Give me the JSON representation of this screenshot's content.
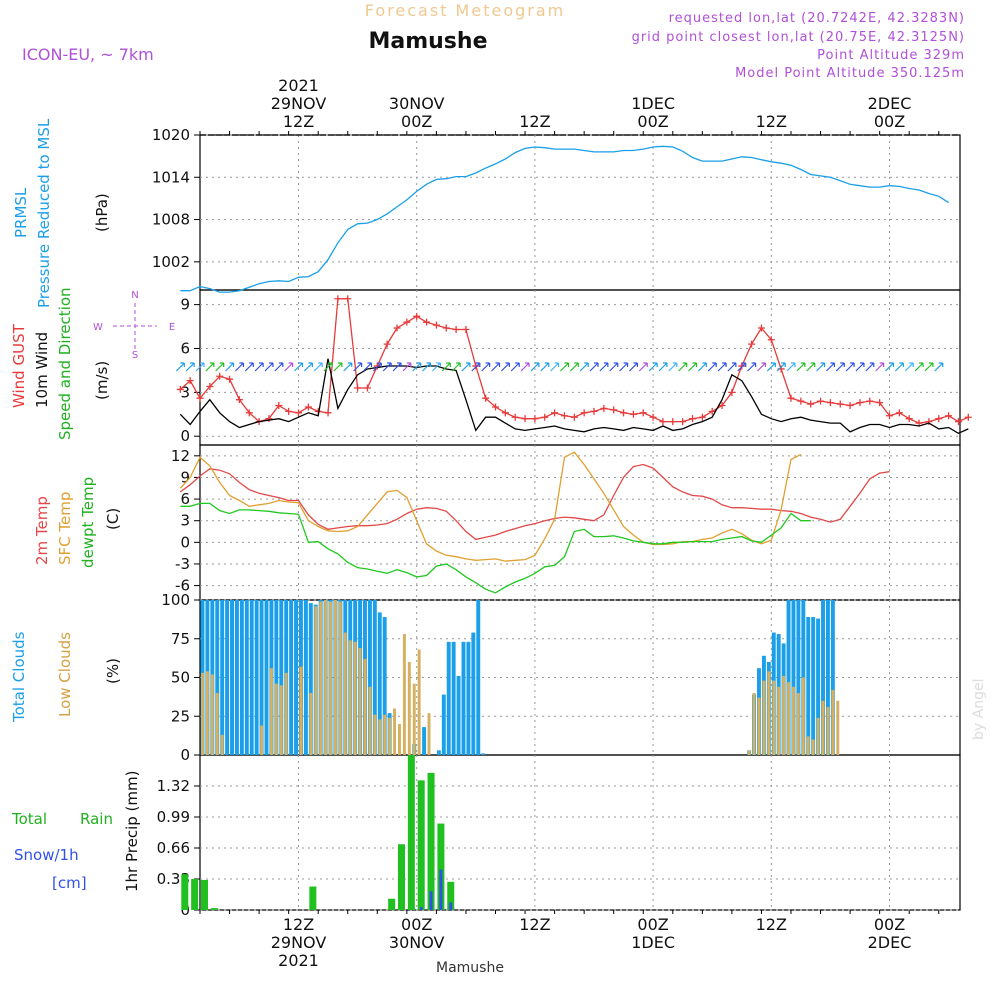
{
  "header": {
    "forecast_label": "Forecast Meteogram",
    "station": "Mamushe",
    "model": "ICON-EU, ~ 7km",
    "requested": "requested lon,lat (20.7242E, 42.3283N)",
    "grid_point": "grid point closest lon,lat (20.75E, 42.3125N)",
    "point_altitude": "Point Altitude 329m",
    "model_altitude": "Model Point Altitude 350.125m",
    "footer_station": "Mamushe",
    "watermark": "by Angel"
  },
  "time_axis": {
    "top_labels": [
      {
        "t": 12,
        "lines": [
          "2021",
          "29NOV",
          "12Z"
        ]
      },
      {
        "t": 24,
        "lines": [
          "30NOV",
          "00Z"
        ]
      },
      {
        "t": 36,
        "lines": [
          "12Z"
        ]
      },
      {
        "t": 48,
        "lines": [
          "1DEC",
          "00Z"
        ]
      },
      {
        "t": 60,
        "lines": [
          "12Z"
        ]
      },
      {
        "t": 72,
        "lines": [
          "2DEC",
          "00Z"
        ]
      }
    ],
    "bottom_labels": [
      {
        "t": 12,
        "lines": [
          "12Z",
          "29NOV",
          "2021"
        ]
      },
      {
        "t": 24,
        "lines": [
          "00Z",
          "30NOV"
        ]
      },
      {
        "t": 36,
        "lines": [
          "12Z"
        ]
      },
      {
        "t": 48,
        "lines": [
          "00Z",
          "1DEC"
        ]
      },
      {
        "t": 60,
        "lines": [
          "12Z"
        ]
      },
      {
        "t": 72,
        "lines": [
          "00Z",
          "2DEC"
        ]
      }
    ]
  },
  "panel_labels": {
    "pressure": {
      "l1": "PRMSL",
      "l2": "Pressure Reduced to MSL",
      "unit": "(hPa)"
    },
    "wind": {
      "l1": "Wind GUST",
      "l2": "10m Wind",
      "l3": "Speed and Direction",
      "unit": "(m/s)",
      "compass_n": "N",
      "compass_s": "S",
      "compass_w": "W",
      "compass_e": "E"
    },
    "temp": {
      "l1": "2m Temp",
      "l2": "SFC Temp",
      "l3": "dewpt Temp",
      "unit": "(C)"
    },
    "cloud": {
      "l1": "Total Clouds",
      "l2": "Low Clouds",
      "unit": "(%)"
    },
    "precip": {
      "l1a": "Total",
      "l1b": "Rain",
      "l2": "Snow/1h",
      "l3": "[cm]",
      "unit": "1hr Precip (mm)"
    }
  },
  "colors": {
    "pressure": "#1a9fe8",
    "gust": "#e83a3a",
    "wind": "#000000",
    "temp2m": "#e34848",
    "sfc": "#e0a030",
    "dew": "#20c820",
    "total_cloud": "#1a9fe8",
    "low_cloud": "#d4b060",
    "rain": "#20c020",
    "snow": "#3050e8",
    "magenta": "#b050d8"
  },
  "chart_data": [
    {
      "type": "line",
      "title": "PRMSL",
      "ylabel": "(hPa)",
      "x_step_hours": 1,
      "x_start_hour": 0,
      "yticks": [
        1002,
        1008,
        1014,
        1020
      ],
      "ylim": [
        998,
        1020
      ],
      "series": [
        {
          "name": "PRMSL",
          "values": [
            997.9,
            997.9,
            998.5,
            998.2,
            997.7,
            997.7,
            997.9,
            998.4,
            998.9,
            999.2,
            999.3,
            999.2,
            999.8,
            999.9,
            1000.6,
            1002.3,
            1004.7,
            1006.6,
            1007.4,
            1007.5,
            1008.0,
            1008.8,
            1009.8,
            1010.8,
            1012.0,
            1013.0,
            1013.7,
            1013.8,
            1014.1,
            1014.1,
            1014.6,
            1015.3,
            1015.9,
            1016.6,
            1017.5,
            1018.1,
            1018.3,
            1018.2,
            1018.0,
            1018.0,
            1018.0,
            1017.8,
            1017.6,
            1017.6,
            1017.6,
            1017.8,
            1017.8,
            1018.0,
            1018.3,
            1018.4,
            1018.3,
            1017.7,
            1016.8,
            1016.3,
            1016.3,
            1016.3,
            1016.6,
            1016.9,
            1016.8,
            1016.5,
            1016.2,
            1016.0,
            1015.7,
            1015.1,
            1014.4,
            1014.2,
            1014.0,
            1013.5,
            1013.0,
            1012.8,
            1012.6,
            1012.6,
            1012.8,
            1012.7,
            1012.4,
            1012.2,
            1011.7,
            1011.3,
            1010.4
          ]
        }
      ]
    },
    {
      "type": "line",
      "title": "Wind GUST / 10m Wind",
      "ylabel": "(m/s)",
      "x_step_hours": 1,
      "x_start_hour": 0,
      "yticks": [
        0,
        3,
        6,
        9
      ],
      "ylim": [
        -0.6,
        10
      ],
      "series": [
        {
          "name": "Wind GUST",
          "values": [
            3.2,
            3.8,
            2.6,
            3.4,
            4.1,
            3.9,
            2.5,
            1.6,
            1.0,
            1.2,
            2.1,
            1.7,
            1.6,
            2.0,
            1.7,
            1.6,
            9.4,
            9.4,
            3.3,
            3.3,
            4.8,
            6.3,
            7.4,
            7.8,
            8.2,
            7.8,
            7.6,
            7.4,
            7.3,
            7.3,
            4.8,
            2.6,
            2.0,
            1.6,
            1.3,
            1.2,
            1.2,
            1.3,
            1.6,
            1.4,
            1.3,
            1.6,
            1.7,
            1.9,
            1.8,
            1.6,
            1.5,
            1.6,
            1.3,
            1.0,
            1.0,
            1.0,
            1.2,
            1.3,
            1.7,
            2.1,
            3.0,
            4.8,
            6.3,
            7.4,
            6.6,
            4.6,
            2.6,
            2.4,
            2.2,
            2.4,
            2.3,
            2.2,
            2.1,
            2.3,
            2.4,
            2.3,
            1.4,
            1.6,
            1.2,
            0.9,
            1.0,
            1.2,
            1.4,
            1.0,
            1.3
          ]
        },
        {
          "name": "10m Wind",
          "values": [
            1.5,
            0.8,
            1.7,
            2.5,
            1.6,
            1.0,
            0.6,
            0.8,
            1.0,
            1.1,
            1.2,
            1.0,
            1.3,
            1.6,
            1.4,
            5.3,
            1.9,
            3.2,
            4.2,
            4.6,
            4.7,
            4.8,
            4.8,
            4.8,
            4.7,
            4.8,
            4.8,
            4.6,
            4.5,
            2.5,
            0.4,
            1.3,
            1.3,
            0.9,
            0.5,
            0.4,
            0.5,
            0.6,
            0.7,
            0.5,
            0.4,
            0.3,
            0.5,
            0.6,
            0.5,
            0.4,
            0.6,
            0.5,
            0.4,
            0.7,
            0.4,
            0.5,
            0.8,
            1.0,
            1.3,
            2.5,
            4.2,
            3.8,
            2.7,
            1.5,
            1.2,
            1.0,
            1.2,
            1.3,
            1.1,
            1.0,
            0.9,
            0.9,
            0.3,
            0.6,
            0.8,
            0.8,
            0.6,
            0.8,
            0.8,
            0.7,
            0.9,
            0.5,
            0.6,
            0.2,
            0.5
          ]
        }
      ]
    },
    {
      "type": "line",
      "title": "2m Temp / SFC Temp / dewpt Temp",
      "ylabel": "(C)",
      "x_step_hours": 1,
      "x_start_hour": 0,
      "yticks": [
        -6,
        -3,
        0,
        3,
        6,
        9,
        12
      ],
      "ylim": [
        -8,
        13.5
      ],
      "series": [
        {
          "name": "2m Temp",
          "values": [
            7.0,
            8.0,
            9.2,
            10.2,
            10.0,
            9.5,
            8.3,
            7.3,
            6.8,
            6.5,
            6.2,
            5.8,
            5.8,
            3.8,
            2.5,
            1.8,
            2.0,
            2.2,
            2.3,
            2.3,
            2.4,
            2.6,
            3.2,
            4.0,
            4.6,
            4.8,
            4.7,
            4.3,
            3.0,
            1.5,
            0.4,
            0.7,
            1.0,
            1.5,
            1.9,
            2.3,
            2.6,
            3.0,
            3.3,
            3.5,
            3.4,
            3.2,
            3.0,
            3.8,
            6.5,
            9.0,
            10.5,
            10.8,
            10.3,
            9.0,
            7.7,
            7.0,
            6.5,
            6.4,
            6.0,
            5.2,
            4.8,
            4.8,
            4.7,
            4.6,
            4.6,
            4.4,
            4.3,
            4.0,
            3.5,
            3.2,
            2.8,
            3.2,
            5.0,
            6.8,
            8.8,
            9.6,
            9.8
          ]
        },
        {
          "name": "SFC Temp",
          "values": [
            7.5,
            9.0,
            11.8,
            10.6,
            8.3,
            6.5,
            5.8,
            5.0,
            5.2,
            5.4,
            5.8,
            5.6,
            5.5,
            3.0,
            2.2,
            1.6,
            1.5,
            1.6,
            2.2,
            3.8,
            5.4,
            7.0,
            7.2,
            6.2,
            3.0,
            -0.2,
            -1.2,
            -1.8,
            -2.0,
            -2.3,
            -2.5,
            -2.4,
            -2.3,
            -2.6,
            -2.5,
            -2.4,
            -1.8,
            0.5,
            3.2,
            11.8,
            12.5,
            10.8,
            8.8,
            6.8,
            4.5,
            2.2,
            1.0,
            0.0,
            -0.3,
            -0.3,
            -0.2,
            0.1,
            0.1,
            0.4,
            0.6,
            1.3,
            1.8,
            1.2,
            0.3,
            -0.2,
            0.3,
            4.5,
            11.5,
            12.2
          ]
        },
        {
          "name": "dewpt Temp",
          "values": [
            5.0,
            5.0,
            5.4,
            5.4,
            4.4,
            4.0,
            4.5,
            4.5,
            4.4,
            4.3,
            4.1,
            4.0,
            3.9,
            0.0,
            0.1,
            -0.9,
            -1.6,
            -2.8,
            -3.5,
            -3.7,
            -4.0,
            -4.3,
            -3.8,
            -4.2,
            -4.8,
            -4.6,
            -3.3,
            -3.0,
            -3.8,
            -4.8,
            -5.6,
            -6.5,
            -7.0,
            -6.2,
            -5.5,
            -5.0,
            -4.3,
            -3.4,
            -3.2,
            -2.0,
            1.5,
            1.8,
            0.8,
            0.8,
            0.9,
            0.6,
            0.2,
            0.0,
            -0.2,
            -0.2,
            0.0,
            0.0,
            0.1,
            0.1,
            0.1,
            0.4,
            0.6,
            0.8,
            0.2,
            0.0,
            1.0,
            2.0,
            4.0,
            3.0,
            3.0
          ]
        }
      ]
    },
    {
      "type": "bar",
      "title": "Total Clouds / Low Clouds",
      "ylabel": "(%)",
      "x_step_hours": 1,
      "x_start_hour": 0,
      "yticks": [
        0,
        25,
        50,
        75,
        100
      ],
      "ylim": [
        0,
        100
      ],
      "series": [
        {
          "name": "Total Clouds",
          "values": [
            100,
            100,
            100,
            100,
            100,
            100,
            100,
            100,
            100,
            100,
            100,
            100,
            100,
            100,
            100,
            100,
            100,
            100,
            100,
            100,
            100,
            100,
            98,
            97,
            100,
            100,
            100,
            100,
            100,
            100,
            100,
            100,
            100,
            100,
            100,
            100,
            92,
            89,
            27,
            0,
            0,
            0,
            0,
            7,
            0,
            18,
            0,
            0,
            3,
            39,
            73,
            73,
            51,
            73,
            73,
            79,
            100,
            1,
            0,
            0,
            0,
            0,
            0,
            0,
            0,
            0,
            0,
            0,
            0,
            0,
            0,
            0,
            0,
            0,
            0,
            0,
            0,
            0,
            0,
            0,
            0,
            0,
            0,
            0,
            0,
            0,
            0,
            0,
            0,
            0,
            0,
            0,
            0,
            0,
            0,
            0,
            0,
            0,
            0,
            0,
            0,
            0,
            0,
            0,
            0,
            0,
            0,
            0,
            0,
            0,
            0,
            3,
            39,
            56,
            64,
            60,
            79,
            78,
            72,
            100,
            100,
            100,
            100,
            89,
            89,
            88,
            100,
            100,
            100
          ]
        },
        {
          "name": "Low Clouds",
          "values": [
            53,
            54,
            52,
            40,
            13,
            0,
            0,
            0,
            0,
            0,
            0,
            0,
            19,
            0,
            56,
            46,
            45,
            53,
            0,
            0,
            57,
            0,
            40,
            96,
            99,
            100,
            99,
            100,
            99,
            79,
            74,
            73,
            69,
            62,
            44,
            26,
            23,
            26,
            24,
            30,
            20,
            78,
            60,
            46,
            68,
            0,
            27,
            0,
            0,
            0,
            0,
            0,
            0,
            0,
            0,
            0,
            0,
            0,
            0,
            0,
            0,
            0,
            0,
            0,
            0,
            0,
            0,
            0,
            0,
            0,
            0,
            0,
            0,
            0,
            0,
            0,
            0,
            0,
            0,
            0,
            0,
            0,
            0,
            0,
            0,
            0,
            0,
            0,
            0,
            0,
            0,
            0,
            0,
            0,
            0,
            0,
            0,
            0,
            0,
            0,
            0,
            0,
            0,
            0,
            0,
            0,
            0,
            0,
            0,
            0,
            0,
            3,
            40,
            37,
            48,
            54,
            48,
            44,
            51,
            47,
            44,
            40,
            50,
            12,
            10,
            24,
            35,
            31,
            42,
            35
          ]
        }
      ]
    },
    {
      "type": "bar",
      "title": "1hr Precip",
      "ylabel": "1hr Precip (mm)",
      "x_step_hours": 1,
      "x_start_hour": 0,
      "yticks": [
        0,
        0.33,
        0.66,
        0.99,
        1.32
      ],
      "ylim": [
        0,
        1.65
      ],
      "series": [
        {
          "name": "Total Rain",
          "values": [
            0.38,
            0.33,
            0.32,
            0.02,
            0,
            0,
            0,
            0,
            0,
            0,
            0,
            0,
            0,
            0.25,
            0,
            0,
            0,
            0,
            0,
            0,
            0,
            0.12,
            0.7,
            1.65,
            1.38,
            1.46,
            0.92,
            0.3
          ]
        },
        {
          "name": "Snow/1h",
          "values": [
            0,
            0,
            0,
            0,
            0,
            0,
            0,
            0,
            0,
            0,
            0,
            0,
            0,
            0,
            0,
            0,
            0,
            0,
            0,
            0,
            0,
            0,
            0,
            0,
            0.03,
            0.2,
            0.43,
            0.08
          ]
        }
      ]
    }
  ]
}
